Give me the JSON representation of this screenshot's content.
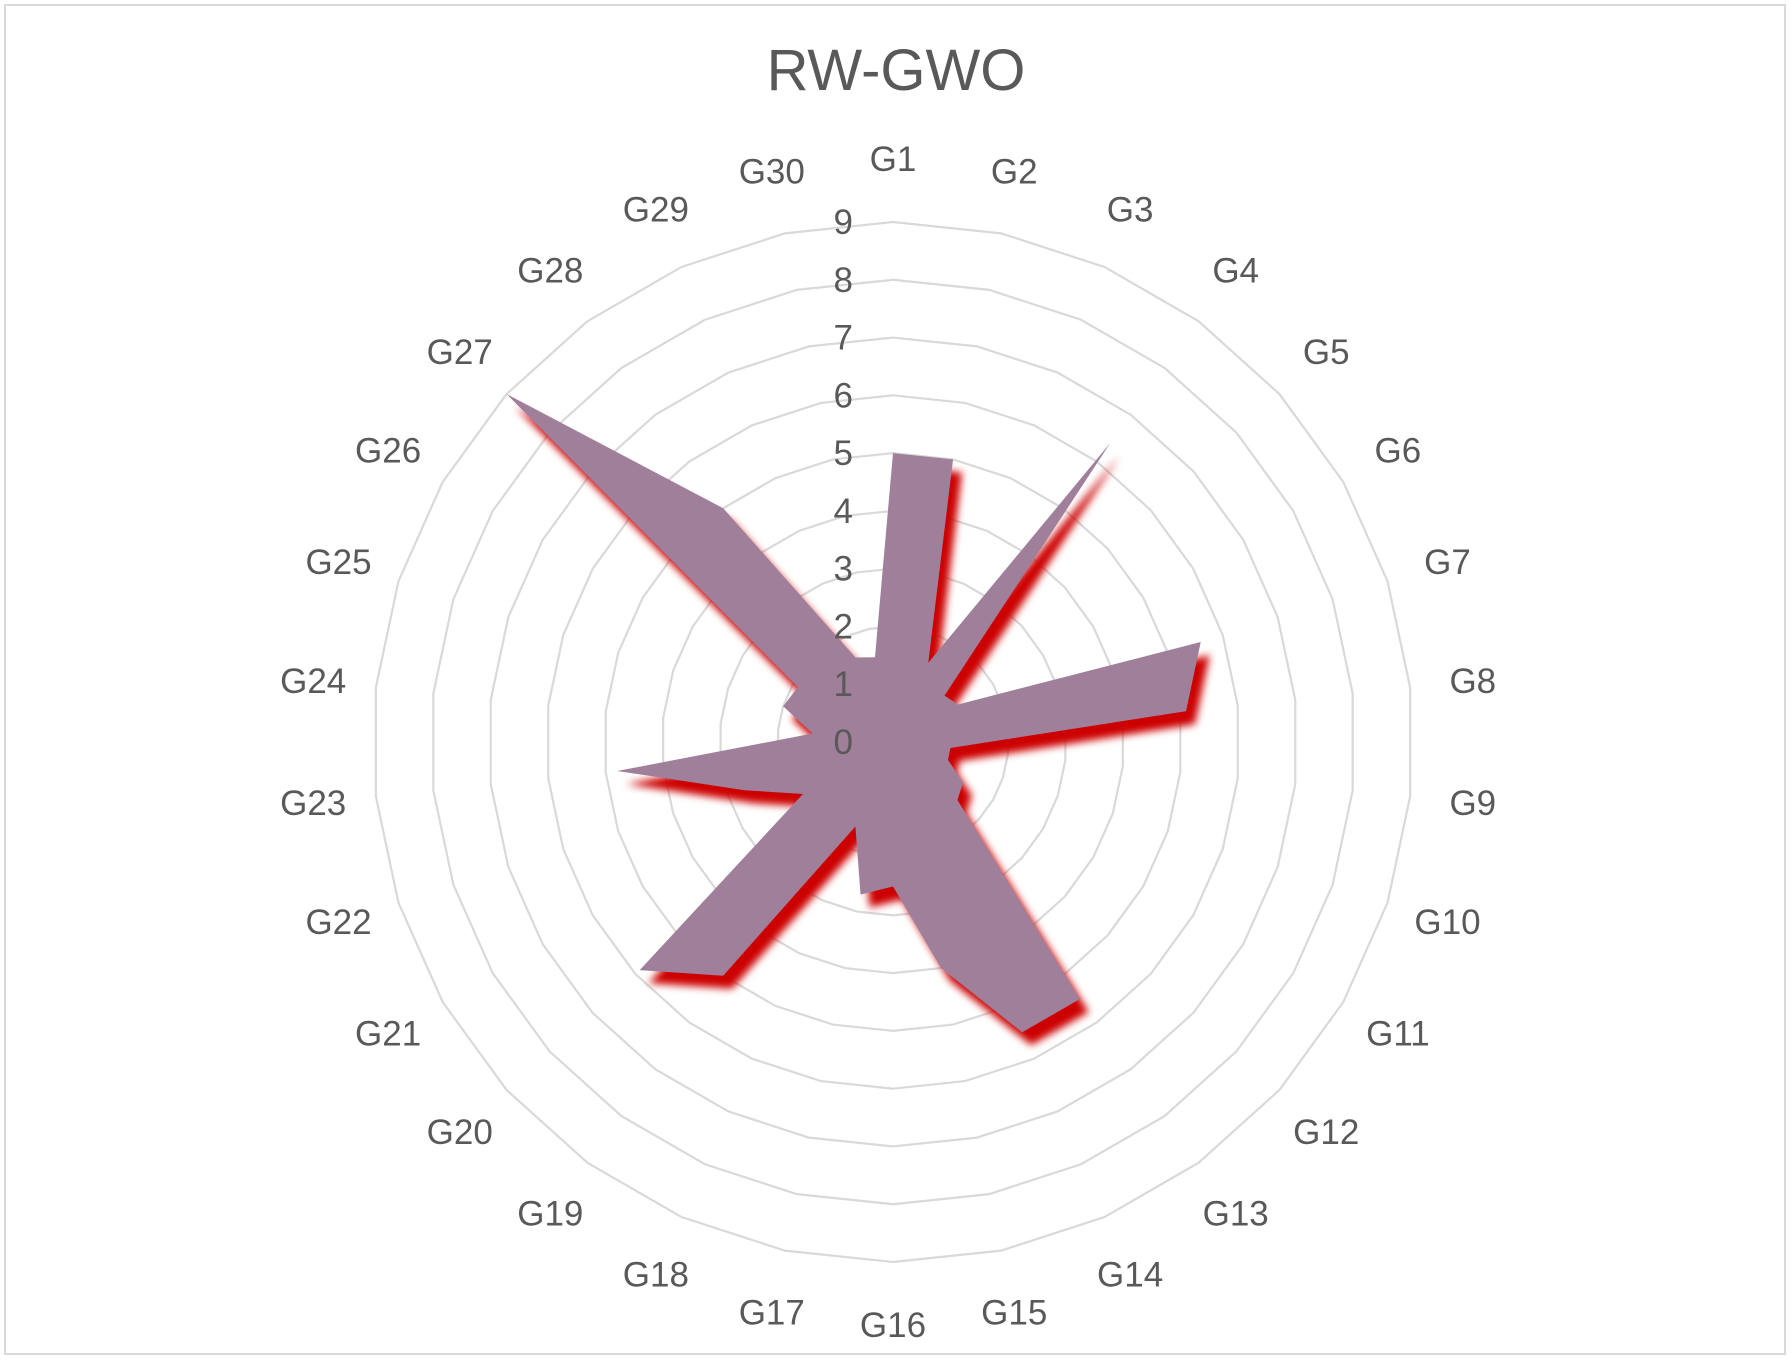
{
  "chart_data": {
    "type": "radar",
    "title": "RW-GWO",
    "categories": [
      "G1",
      "G2",
      "G3",
      "G4",
      "G5",
      "G6",
      "G7",
      "G8",
      "G9",
      "G10",
      "G11",
      "G12",
      "G13",
      "G14",
      "G15",
      "G16",
      "G17",
      "G18",
      "G19",
      "G20",
      "G21",
      "G22",
      "G23",
      "G24",
      "G25",
      "G26",
      "G27",
      "G28",
      "G29",
      "G30"
    ],
    "series": [
      {
        "values": [
          5,
          5,
          1.5,
          6.4,
          1.2,
          1.3,
          5.6,
          5.1,
          1,
          1,
          1.4,
          1.5,
          5.5,
          5.5,
          4,
          2.5,
          2.7,
          1.6,
          5,
          5.9,
          1.8,
          2.7,
          4.8,
          1.4,
          2,
          1.9,
          9,
          5,
          1.6,
          1.5
        ],
        "color": "#a07f9a",
        "shadow_color": "#cc0000"
      }
    ],
    "rlim": [
      0,
      9
    ],
    "r_ticks": [
      "0",
      "1",
      "2",
      "3",
      "4",
      "5",
      "6",
      "7",
      "8",
      "9"
    ],
    "grid": true,
    "legend": "none"
  },
  "colors": {
    "grid": "#d9d9d9",
    "text": "#595959",
    "fill": "#a07f9a",
    "shadow": "#cc0000"
  }
}
